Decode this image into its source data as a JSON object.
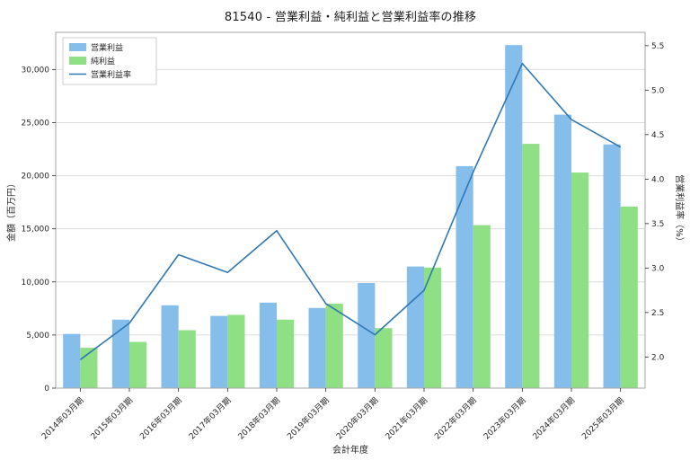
{
  "chart_data": {
    "type": "bar",
    "title": "81540 - 営業利益・純利益と営業利益率の推移",
    "xlabel": "会計年度",
    "ylabel_left": "金額（百万円）",
    "ylabel_right": "営業利益率（%）",
    "categories": [
      "2014年03月期",
      "2015年03月期",
      "2016年03月期",
      "2017年03月期",
      "2018年03月期",
      "2019年03月期",
      "2020年03月期",
      "2021年03月期",
      "2022年03月期",
      "2023年03月期",
      "2024年03月期",
      "2025年03月期"
    ],
    "series": [
      {
        "id": "operating-profit",
        "name": "営業利益",
        "type": "bar",
        "axis": "left",
        "color": "#85BDEB",
        "values": [
          5100,
          6450,
          7800,
          6800,
          8050,
          7550,
          9900,
          11450,
          20900,
          32300,
          25750,
          22950
        ]
      },
      {
        "id": "net-profit",
        "name": "純利益",
        "type": "bar",
        "axis": "left",
        "color": "#8FDF84",
        "values": [
          3800,
          4350,
          5450,
          6900,
          6450,
          7950,
          5650,
          11350,
          15350,
          23000,
          20300,
          17100
        ]
      },
      {
        "id": "operating-margin",
        "name": "営業利益率",
        "type": "line",
        "axis": "right",
        "color": "#3078B4",
        "values": [
          1.97,
          2.38,
          3.15,
          2.95,
          3.42,
          2.6,
          2.25,
          2.75,
          4.08,
          5.3,
          4.67,
          4.36
        ]
      }
    ],
    "left_axis": {
      "min": 0,
      "max": 33500,
      "ticks": [
        0,
        5000,
        10000,
        15000,
        20000,
        25000,
        30000
      ],
      "tick_labels": [
        "0",
        "5,000",
        "10,000",
        "15,000",
        "20,000",
        "25,000",
        "30,000"
      ]
    },
    "right_axis": {
      "min": 1.65,
      "max": 5.65,
      "ticks": [
        2.0,
        2.5,
        3.0,
        3.5,
        4.0,
        4.5,
        5.0,
        5.5
      ],
      "tick_labels": [
        "2.0",
        "2.5",
        "3.0",
        "3.5",
        "4.0",
        "4.5",
        "5.0",
        "5.5"
      ]
    },
    "legend_position": "upper-left",
    "grid": "horizontal",
    "colors": {
      "grid": "#dcdcdc",
      "plot_border": "#a6a6a6",
      "text": "#262626",
      "background": "#ffffff",
      "legend_border": "#cccccc"
    }
  }
}
